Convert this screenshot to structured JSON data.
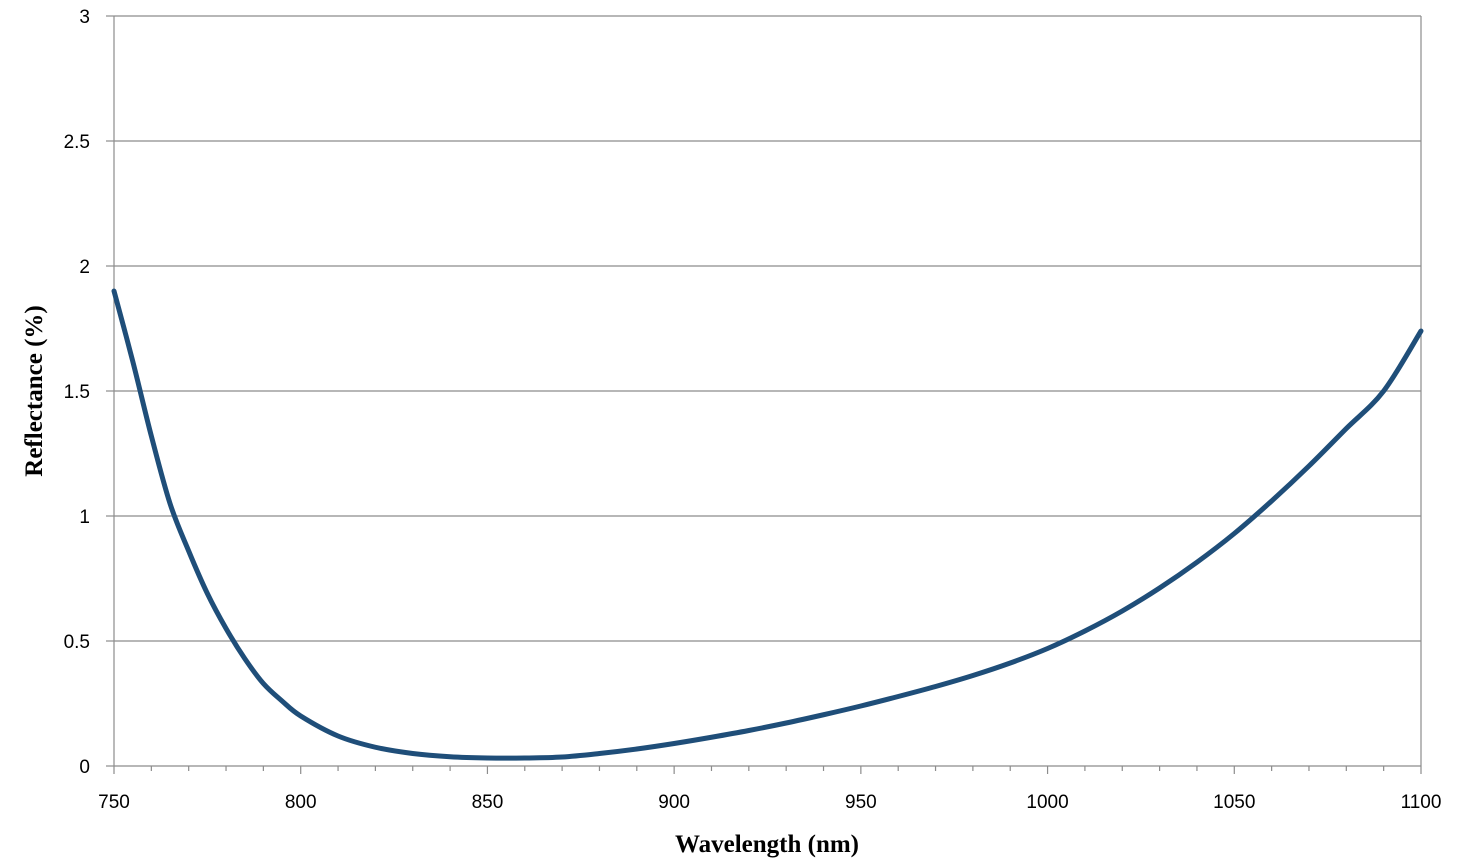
{
  "chart_data": {
    "type": "line",
    "title": "",
    "xlabel": "Wavelength (nm)",
    "ylabel": "Reflectance (%)",
    "xlim": [
      750,
      1100
    ],
    "ylim": [
      0,
      3
    ],
    "x_ticks": [
      750,
      800,
      850,
      900,
      950,
      1000,
      1050,
      1100
    ],
    "y_ticks": [
      0,
      0.5,
      1,
      1.5,
      2,
      2.5,
      3
    ],
    "x_minor_step": 10,
    "grid": true,
    "legend": "none",
    "series": [
      {
        "color": "#1f4e79",
        "x": [
          750,
          755,
          760,
          765,
          770,
          775,
          780,
          785,
          790,
          795,
          800,
          810,
          820,
          830,
          840,
          850,
          860,
          870,
          880,
          890,
          900,
          910,
          920,
          930,
          940,
          950,
          960,
          970,
          980,
          990,
          1000,
          1010,
          1020,
          1030,
          1040,
          1050,
          1060,
          1070,
          1080,
          1090,
          1100
        ],
        "y": [
          1.9,
          1.62,
          1.32,
          1.05,
          0.86,
          0.69,
          0.55,
          0.43,
          0.33,
          0.26,
          0.2,
          0.12,
          0.075,
          0.05,
          0.037,
          0.032,
          0.032,
          0.036,
          0.05,
          0.068,
          0.09,
          0.115,
          0.142,
          0.172,
          0.205,
          0.24,
          0.278,
          0.318,
          0.362,
          0.412,
          0.47,
          0.54,
          0.62,
          0.712,
          0.815,
          0.93,
          1.06,
          1.2,
          1.35,
          1.5,
          1.74
        ]
      }
    ]
  }
}
